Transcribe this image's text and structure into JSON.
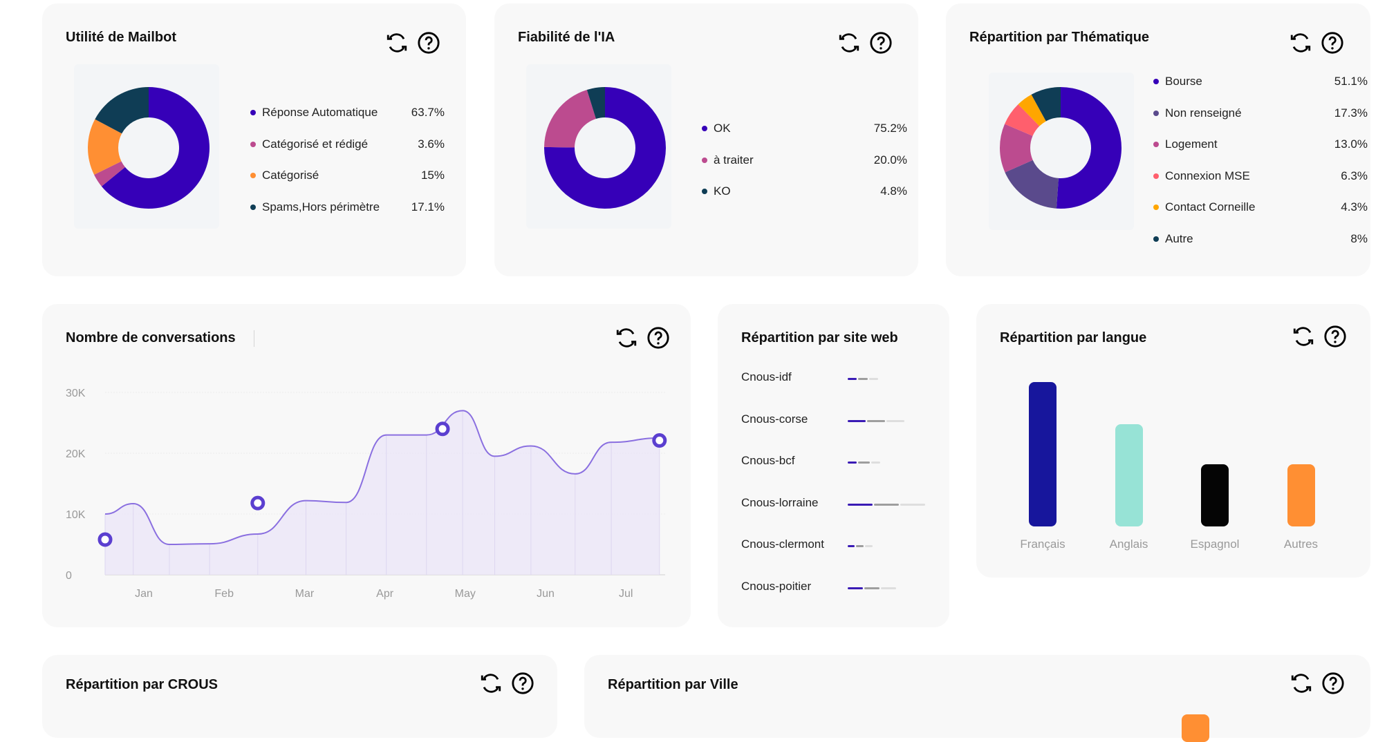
{
  "cards": {
    "utilite": {
      "title": "Utilité de Mailbot",
      "items": [
        {
          "label": "Réponse Automatique",
          "pct": "63.7%",
          "color": "#3600b8",
          "value": 63.7
        },
        {
          "label": "Catégorisé et rédigé",
          "pct": "3.6%",
          "color": "#bc4b8f",
          "value": 3.6
        },
        {
          "label": "Catégorisé",
          "pct": "15%",
          "color": "#ff8f33",
          "value": 15
        },
        {
          "label": "Spams,Hors périmètre",
          "pct": "17.1%",
          "color": "#0f3d55",
          "value": 17.1
        }
      ]
    },
    "fiabilite": {
      "title": "Fiabilité de l'IA",
      "items": [
        {
          "label": "OK",
          "pct": "75.2%",
          "color": "#3600b8",
          "value": 75.2
        },
        {
          "label": "à traiter",
          "pct": "20.0%",
          "color": "#bc4b8f",
          "value": 20.0
        },
        {
          "label": "KO",
          "pct": "4.8%",
          "color": "#0f3d55",
          "value": 4.8
        }
      ]
    },
    "thematique": {
      "title": "Répartition par Thématique",
      "items": [
        {
          "label": "Bourse",
          "pct": "51.1%",
          "color": "#3600b8",
          "value": 51.1
        },
        {
          "label": "Non renseigné",
          "pct": "17.3%",
          "color": "#5a4a8c",
          "value": 17.3
        },
        {
          "label": "Logement",
          "pct": "13.0%",
          "color": "#bc4b8f",
          "value": 13.0
        },
        {
          "label": "Connexion MSE",
          "pct": "6.3%",
          "color": "#ff5f6d",
          "value": 6.3
        },
        {
          "label": "Contact Corneille",
          "pct": "4.3%",
          "color": "#ffa600",
          "value": 4.3
        },
        {
          "label": "Autre",
          "pct": "8%",
          "color": "#0f3d55",
          "value": 8
        }
      ]
    },
    "conversations": {
      "title": "Nombre de conversations"
    },
    "siteweb": {
      "title": "Répartition par site web",
      "sites": [
        {
          "label": "Cnous-idf",
          "parts": [
            0.28,
            0.3,
            0.28
          ]
        },
        {
          "label": "Cnous-corse",
          "parts": [
            0.55,
            0.55,
            0.55
          ]
        },
        {
          "label": "Cnous-bcf",
          "parts": [
            0.28,
            0.35,
            0.28
          ]
        },
        {
          "label": "Cnous-lorraine",
          "parts": [
            0.75,
            0.75,
            0.75
          ]
        },
        {
          "label": "Cnous-clermont",
          "parts": [
            0.2,
            0.22,
            0.22
          ]
        },
        {
          "label": "Cnous-poitier",
          "parts": [
            0.45,
            0.45,
            0.45
          ]
        }
      ]
    },
    "langue": {
      "title": "Répartition par langue",
      "bars": [
        {
          "label": "Français",
          "color": "#17169c",
          "value": 1.0
        },
        {
          "label": "Anglais",
          "color": "#97e3d6",
          "value": 0.71
        },
        {
          "label": "Espagnol",
          "color": "#050505",
          "value": 0.43
        },
        {
          "label": "Autres",
          "color": "#ff8f33",
          "value": 0.43
        }
      ]
    },
    "crous": {
      "title": "Répartition par CROUS"
    },
    "ville": {
      "title": "Répartition par Ville"
    }
  },
  "chart_data": {
    "type": "line",
    "categories": [
      "Jan",
      "Feb",
      "Mar",
      "Apr",
      "May",
      "Jun",
      "Jul"
    ],
    "ylim": [
      0,
      30000
    ],
    "y_ticks": [
      "30K",
      "20K",
      "10K",
      "0"
    ],
    "tick_values": [
      30000,
      20000,
      10000,
      0
    ],
    "x": [
      0,
      0.35,
      0.8,
      1.3,
      1.9,
      2.5,
      3.0,
      3.5,
      4.0,
      4.45,
      4.85,
      5.3,
      5.85,
      6.3,
      6.9
    ],
    "y": [
      10000,
      11700,
      5000,
      5100,
      6700,
      12200,
      11900,
      23000,
      23000,
      27000,
      19500,
      21200,
      16600,
      21800,
      22500
    ],
    "markers_x": [
      -0.45,
      1.9,
      4.2,
      6.9
    ],
    "markers_y": [
      5800,
      11800,
      24000,
      22100
    ],
    "line_color": "#8a6fe0",
    "marker_color": "#5b3fd0"
  }
}
